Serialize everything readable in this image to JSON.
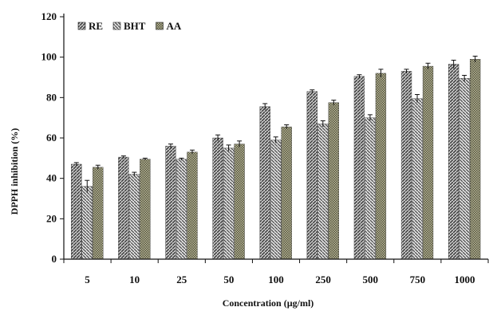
{
  "chart_data": {
    "type": "bar",
    "categories": [
      "5",
      "10",
      "25",
      "50",
      "100",
      "250",
      "500",
      "750",
      "1000"
    ],
    "series": [
      {
        "name": "RE",
        "values": [
          47,
          50.5,
          56,
          60,
          75.5,
          83,
          90.5,
          93,
          96.5
        ],
        "errors": [
          0.8,
          0.6,
          1,
          1.5,
          1.5,
          0.8,
          0.8,
          1,
          2
        ],
        "color": "#6e6e6e",
        "pattern": "pat-re"
      },
      {
        "name": "BHT",
        "values": [
          36,
          42,
          49.5,
          55,
          59,
          67,
          70,
          79.5,
          89.5
        ],
        "errors": [
          3,
          1,
          0.5,
          1.5,
          1.5,
          1.5,
          1.5,
          2,
          1.5
        ],
        "color": "#8a8a8a",
        "pattern": "pat-bht"
      },
      {
        "name": "AA",
        "values": [
          45.5,
          49.5,
          53,
          57,
          65.5,
          77.5,
          92,
          95.5,
          99
        ],
        "errors": [
          1,
          0.5,
          1,
          1.5,
          1,
          1.2,
          2,
          1.5,
          1.5
        ],
        "color": "#7e7e5a",
        "pattern": "pat-aa"
      }
    ],
    "xlabel": "Concentration (µg/ml)",
    "ylabel": "DPPH inhibition (%)",
    "ylim": [
      0,
      120
    ],
    "yticks": [
      0,
      20,
      40,
      60,
      80,
      100,
      120
    ],
    "legend_position": "top-left",
    "grid": false
  }
}
